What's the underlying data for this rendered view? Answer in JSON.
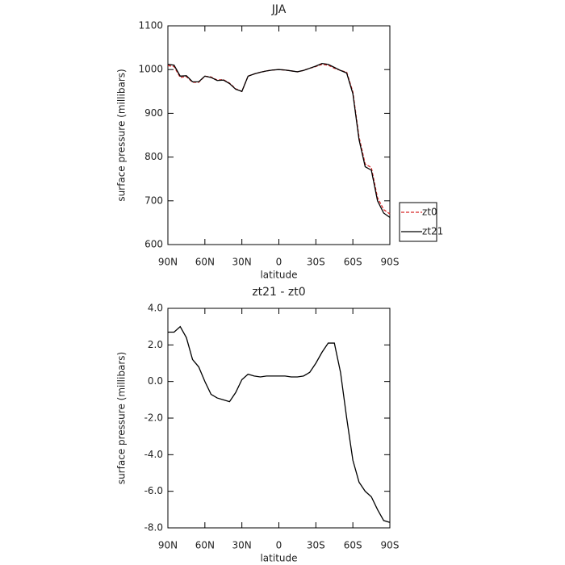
{
  "chart_data": [
    {
      "type": "line",
      "title": "JJA",
      "xlabel": "latitude",
      "ylabel": "surface pressure (millibars)",
      "x": [
        90,
        85,
        80,
        75,
        70,
        65,
        60,
        55,
        50,
        45,
        40,
        35,
        30,
        25,
        20,
        15,
        10,
        5,
        0,
        -5,
        -10,
        -15,
        -20,
        -25,
        -30,
        -35,
        -40,
        -45,
        -50,
        -55,
        -60,
        -65,
        -70,
        -75,
        -80,
        -85,
        -90
      ],
      "series": [
        {
          "name": "zt0",
          "color": "#d62728",
          "line_style": "dashed",
          "values": [
            1009,
            1007,
            982,
            984,
            971,
            971,
            985,
            983,
            976,
            977,
            969,
            956,
            950,
            985,
            990,
            994,
            997,
            999,
            1000,
            999,
            997,
            995,
            998,
            1003,
            1007,
            1012,
            1010,
            1003,
            998,
            994,
            949,
            846,
            784,
            776,
            707,
            680,
            670
          ]
        },
        {
          "name": "zt21",
          "color": "#000000",
          "line_style": "solid",
          "values": [
            1012,
            1010,
            985,
            986,
            972,
            972,
            985,
            982,
            975,
            976,
            968,
            955,
            950,
            985,
            990,
            994,
            997,
            999,
            1000,
            999,
            997,
            995,
            998,
            1003,
            1008,
            1014,
            1012,
            1005,
            998,
            992,
            945,
            840,
            778,
            770,
            700,
            672,
            662
          ]
        }
      ],
      "xlim": [
        90,
        -90
      ],
      "xticks": [
        {
          "value": 90,
          "label": "90N"
        },
        {
          "value": 60,
          "label": "60N"
        },
        {
          "value": 30,
          "label": "30N"
        },
        0,
        {
          "value": -30,
          "label": "30S"
        },
        {
          "value": -60,
          "label": "60S"
        },
        {
          "value": -90,
          "label": "90S"
        }
      ],
      "ylim": [
        600,
        1100
      ],
      "yticks": [
        600,
        700,
        800,
        900,
        1000,
        1100
      ],
      "legend": "right"
    },
    {
      "type": "line",
      "title": "zt21 - zt0",
      "xlabel": "latitude",
      "ylabel": "surface pressure (millibars)",
      "x": [
        90,
        85,
        80,
        75,
        70,
        65,
        60,
        55,
        50,
        45,
        40,
        35,
        30,
        25,
        20,
        15,
        10,
        5,
        0,
        -5,
        -10,
        -15,
        -20,
        -25,
        -30,
        -35,
        -40,
        -45,
        -50,
        -55,
        -60,
        -65,
        -70,
        -75,
        -80,
        -85,
        -90
      ],
      "series": [
        {
          "color": "#000000",
          "line_style": "solid",
          "values": [
            2.7,
            2.7,
            3.0,
            2.4,
            1.2,
            0.8,
            0.0,
            -0.7,
            -0.9,
            -1.0,
            -1.1,
            -0.6,
            0.1,
            0.4,
            0.3,
            0.25,
            0.3,
            0.3,
            0.3,
            0.3,
            0.25,
            0.25,
            0.3,
            0.5,
            1.0,
            1.6,
            2.1,
            2.1,
            0.5,
            -2.0,
            -4.3,
            -5.5,
            -6.0,
            -6.3,
            -7.0,
            -7.6,
            -7.7
          ]
        }
      ],
      "xlim": [
        90,
        -90
      ],
      "xticks": [
        {
          "value": 90,
          "label": "90N"
        },
        {
          "value": 60,
          "label": "60N"
        },
        {
          "value": 30,
          "label": "30N"
        },
        0,
        {
          "value": -30,
          "label": "30S"
        },
        {
          "value": -60,
          "label": "60S"
        },
        {
          "value": -90,
          "label": "90S"
        }
      ],
      "ylim": [
        -8,
        4
      ],
      "yticks": [
        {
          "value": -8,
          "label": "-8.0"
        },
        {
          "value": -6,
          "label": "-6.0"
        },
        {
          "value": -4,
          "label": "-4.0"
        },
        {
          "value": -2,
          "label": "-2.0"
        },
        {
          "value": 0,
          "label": "0.0"
        },
        {
          "value": 2,
          "label": "2.0"
        },
        {
          "value": 4,
          "label": "4.0"
        }
      ]
    }
  ]
}
